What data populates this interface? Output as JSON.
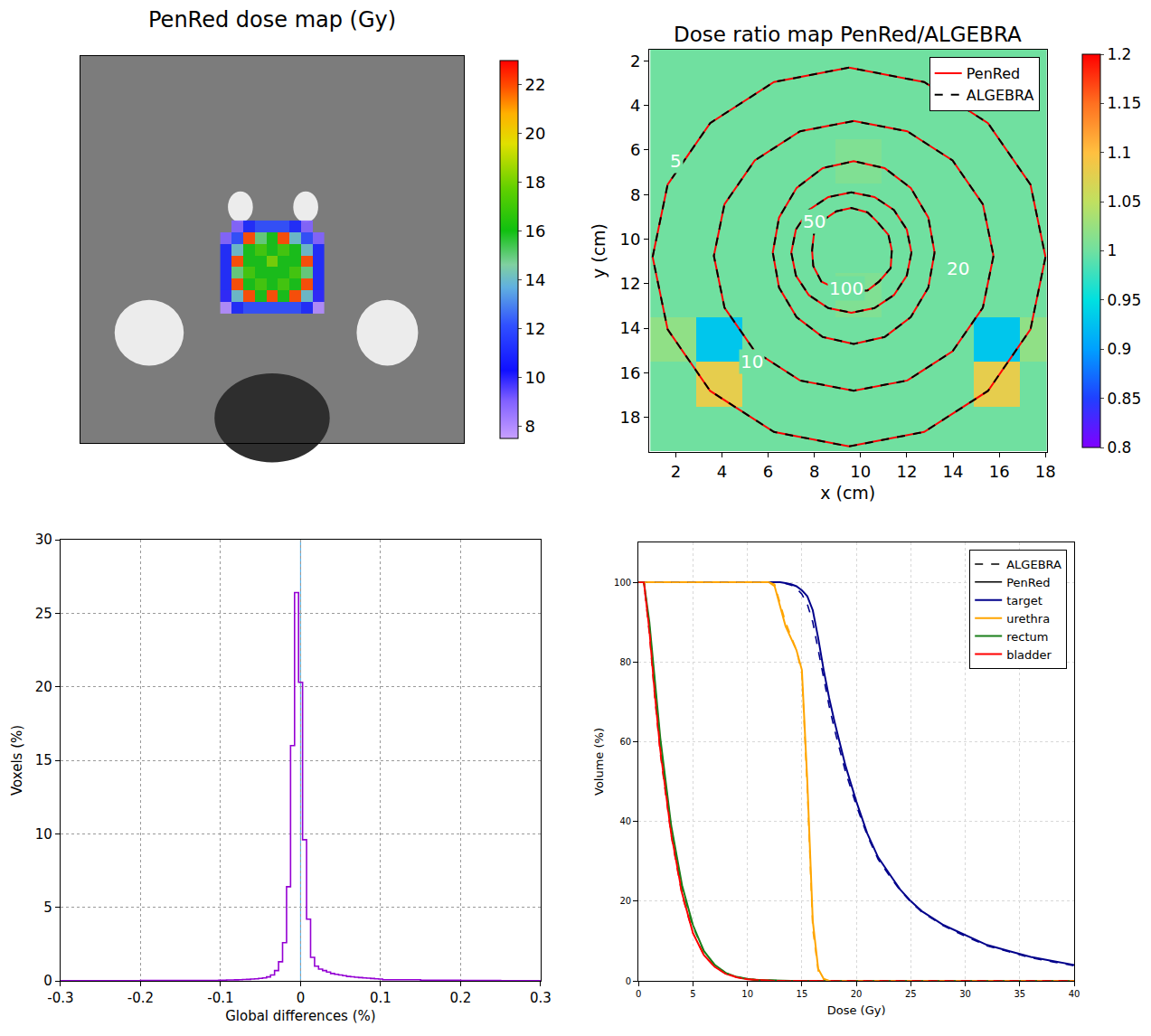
{
  "chart_data": [
    {
      "type": "heatmap",
      "title": "PenRed dose map (Gy)",
      "x": [
        38,
        41,
        44,
        47,
        50,
        53,
        56,
        59,
        62
      ],
      "y": [
        44,
        47,
        50,
        53,
        56,
        59,
        62,
        65
      ],
      "z": [
        [
          null,
          9,
          11,
          12,
          12,
          12,
          11,
          9,
          null
        ],
        [
          9,
          12,
          22,
          15,
          16,
          22,
          14,
          12,
          9
        ],
        [
          11,
          14,
          16,
          17,
          16,
          17,
          16,
          14,
          11
        ],
        [
          11,
          22,
          16,
          16,
          18,
          16,
          16,
          22,
          11
        ],
        [
          11,
          15,
          17,
          16,
          16,
          16,
          17,
          15,
          11
        ],
        [
          11,
          22,
          16,
          17,
          16,
          17,
          16,
          22,
          11
        ],
        [
          10,
          14,
          22,
          16,
          22,
          16,
          22,
          14,
          10
        ],
        [
          8,
          11,
          12,
          12,
          12,
          12,
          12,
          11,
          8
        ]
      ],
      "xlim": [
        0,
        100
      ],
      "ylim": [
        100,
        0
      ],
      "tick_labels": false,
      "colorbar_range": [
        7.5,
        23
      ],
      "colorbar_ticks": [
        8,
        10,
        12,
        14,
        16,
        18,
        20,
        22
      ]
    },
    {
      "type": "heatmap",
      "title": "Dose ratio map PenRed/ALGEBRA",
      "xlabel": "x (cm)",
      "ylabel": "y (cm)",
      "x": [
        1.9,
        3.9,
        5.9,
        7.9,
        9.9,
        11.9,
        13.9,
        15.9,
        17.9
      ],
      "y": [
        2.5,
        4.5,
        6.5,
        8.5,
        10.5,
        12.5,
        14.5,
        16.5,
        18.5
      ],
      "z": [
        [
          1,
          1,
          1,
          1,
          1,
          1,
          1,
          1,
          1
        ],
        [
          1,
          1,
          1,
          1,
          1,
          1,
          1,
          1,
          1
        ],
        [
          1,
          1,
          1,
          1,
          1.01,
          1,
          1,
          1,
          1
        ],
        [
          1,
          1,
          1,
          1,
          1,
          1,
          1,
          1,
          1
        ],
        [
          1,
          1,
          1,
          1,
          1,
          1,
          1,
          1,
          1
        ],
        [
          1,
          1,
          1,
          1,
          1.01,
          1,
          1,
          1,
          1
        ],
        [
          1.02,
          0.93,
          1,
          1,
          1,
          1,
          1,
          0.93,
          1.02
        ],
        [
          1,
          1.08,
          1,
          1,
          1,
          1,
          1,
          1.08,
          1
        ],
        [
          1,
          1,
          1,
          1,
          1,
          1,
          1,
          1,
          1
        ]
      ],
      "xlim": [
        0.85,
        18.05
      ],
      "xticks": [
        2,
        4,
        6,
        8,
        10,
        12,
        14,
        16,
        18
      ],
      "ylim": [
        19.55,
        1.5
      ],
      "yticks": [
        2,
        4,
        6,
        8,
        10,
        12,
        14,
        16,
        18
      ],
      "colorbar_range": [
        0.8,
        1.2
      ],
      "colorbar_ticks": [
        0.8,
        0.85,
        0.9,
        0.95,
        1,
        1.05,
        1.1,
        1.15,
        1.2
      ],
      "legend": "top right",
      "series": [
        {
          "name": "PenRed",
          "color": "#ff0000",
          "line_style": "solid"
        },
        {
          "name": "ALGEBRA",
          "color": "#000000",
          "line_style": "dash"
        }
      ],
      "contours": [
        {
          "level": 5,
          "label_at": [
            2.0,
            6.5
          ],
          "x": [
            18.0,
            17.35,
            15.51,
            12.75,
            9.5,
            6.25,
            3.49,
            1.65,
            1.0,
            1.65,
            3.49,
            6.25,
            9.5,
            12.75,
            15.51,
            17.35
          ],
          "y": [
            10.8,
            14.05,
            16.81,
            18.65,
            19.3,
            18.65,
            16.81,
            14.05,
            10.8,
            7.55,
            4.79,
            2.95,
            2.3,
            2.95,
            4.79,
            7.55
          ]
        },
        {
          "level": 10,
          "label_at": [
            5.3,
            15.5
          ],
          "x": [
            15.75,
            15.29,
            13.98,
            12.02,
            9.7,
            7.38,
            5.42,
            4.11,
            3.65,
            4.11,
            5.42,
            7.38,
            9.7,
            12.02,
            13.98,
            15.29
          ],
          "y": [
            10.75,
            13.07,
            15.03,
            16.34,
            16.8,
            16.34,
            15.03,
            13.07,
            10.75,
            8.43,
            6.47,
            5.16,
            4.7,
            5.16,
            6.47,
            8.43
          ]
        },
        {
          "level": 20,
          "label_at": [
            14.2,
            11.3
          ],
          "x": [
            13.2,
            12.93,
            12.17,
            11.04,
            9.7,
            8.36,
            7.23,
            6.47,
            6.2,
            6.47,
            7.23,
            8.36,
            9.7,
            11.04,
            12.17,
            12.93
          ],
          "y": [
            10.6,
            12.17,
            13.5,
            14.39,
            14.7,
            14.39,
            13.5,
            12.17,
            10.6,
            9.03,
            7.7,
            6.81,
            6.5,
            6.81,
            7.7,
            9.03
          ]
        },
        {
          "level": 50,
          "label_at": [
            8.0,
            9.2
          ],
          "x": [
            12.2,
            12.0,
            11.44,
            10.6,
            9.6,
            8.6,
            7.76,
            7.2,
            7.0,
            7.2,
            7.76,
            8.6,
            9.6,
            10.6,
            11.44,
            12.0
          ],
          "y": [
            10.6,
            11.63,
            12.51,
            13.09,
            13.3,
            13.09,
            12.51,
            11.63,
            10.6,
            9.57,
            8.69,
            8.11,
            7.9,
            8.11,
            8.69,
            9.57
          ]
        },
        {
          "level": 100,
          "label_at": [
            9.4,
            12.2
          ],
          "x": [
            11.35,
            11.3,
            10.8,
            10.3,
            9.6,
            8.9,
            8.3,
            7.95,
            7.9,
            8.0,
            8.45,
            8.95,
            9.6,
            10.3,
            10.7,
            11.2
          ],
          "y": [
            10.5,
            11.3,
            11.9,
            12.3,
            12.35,
            12.2,
            11.9,
            11.2,
            10.5,
            9.6,
            9.1,
            8.75,
            8.6,
            8.8,
            9.2,
            9.8
          ]
        }
      ]
    },
    {
      "type": "histogram",
      "xlabel": "Global differences (%)",
      "ylabel": "Voxels (%)",
      "color": "#9400d3",
      "bins": [
        -0.3,
        -0.25,
        -0.2,
        -0.15,
        -0.1025,
        -0.0975,
        -0.0925,
        -0.0875,
        -0.0825,
        -0.0775,
        -0.0725,
        -0.0675,
        -0.0625,
        -0.0575,
        -0.0525,
        -0.0475,
        -0.0425,
        -0.0375,
        -0.0325,
        -0.0275,
        -0.0225,
        -0.0175,
        -0.0125,
        -0.0075,
        -0.0025,
        0.0025,
        0.0075,
        0.0125,
        0.0175,
        0.0225,
        0.0275,
        0.0325,
        0.0375,
        0.0425,
        0.0475,
        0.0525,
        0.0575,
        0.0625,
        0.0675,
        0.0725,
        0.0775,
        0.0825,
        0.0875,
        0.0925,
        0.0975,
        0.1025,
        0.15,
        0.2,
        0.25,
        0.3
      ],
      "counts": [
        0.01,
        0.01,
        0.02,
        0.03,
        0.05,
        0.05,
        0.06,
        0.06,
        0.07,
        0.08,
        0.09,
        0.1,
        0.12,
        0.14,
        0.17,
        0.2,
        0.27,
        0.4,
        0.7,
        1.3,
        2.6,
        6.4,
        16,
        26.4,
        20.3,
        9.6,
        4.2,
        1.6,
        1.0,
        0.8,
        0.7,
        0.6,
        0.5,
        0.45,
        0.4,
        0.35,
        0.3,
        0.28,
        0.25,
        0.22,
        0.2,
        0.18,
        0.16,
        0.14,
        0.12,
        0.08,
        0.04,
        0.02,
        0.01
      ],
      "reference_line": {
        "x": 0,
        "color": "#5fb4e8"
      },
      "xlim": [
        -0.3,
        0.3
      ],
      "xticks": [
        -0.3,
        -0.2,
        -0.1,
        0,
        0.1,
        0.2,
        0.3
      ],
      "ylim": [
        0,
        30
      ],
      "yticks": [
        0,
        5,
        10,
        15,
        20,
        25,
        30
      ],
      "grid": true
    },
    {
      "type": "line",
      "xlabel": "Dose (Gy)",
      "ylabel": "Volume (%)",
      "x": [
        0,
        0.5,
        1,
        1.5,
        2,
        3,
        4,
        5,
        6,
        7,
        8,
        9,
        10,
        11,
        12,
        12.5,
        13,
        13.5,
        14,
        14.5,
        15,
        15.5,
        16,
        16.5,
        17,
        17.5,
        18,
        19,
        20,
        21,
        22,
        23,
        24,
        25,
        26,
        28,
        30,
        32,
        34,
        36,
        38,
        40
      ],
      "xlim": [
        0,
        40
      ],
      "xticks": [
        0,
        5,
        10,
        15,
        20,
        25,
        30,
        35,
        40
      ],
      "ylim": [
        0,
        110
      ],
      "yticks": [
        0,
        20,
        40,
        60,
        80,
        100
      ],
      "grid": true,
      "legend": "top right",
      "line_styles": [
        {
          "name": "ALGEBRA",
          "color": "#000000",
          "line_style": "dash"
        },
        {
          "name": "PenRed",
          "color": "#000000",
          "line_style": "solid"
        }
      ],
      "series": [
        {
          "name": "target",
          "color": "#00008b",
          "values": [
            100,
            100,
            100,
            100,
            100,
            100,
            100,
            100,
            100,
            100,
            100,
            100,
            100,
            100,
            100,
            100,
            100,
            99.8,
            99.5,
            99,
            98,
            96.5,
            93,
            86,
            78,
            71,
            65,
            54,
            45,
            37,
            31,
            27,
            23,
            20,
            17.5,
            14,
            11.5,
            9,
            7.5,
            6,
            5,
            4
          ],
          "algebra_values": [
            100,
            100,
            100,
            100,
            100,
            100,
            100,
            100,
            100,
            100,
            100,
            100,
            100,
            100,
            100,
            100,
            100,
            99.7,
            99.3,
            98.5,
            97,
            94.5,
            90,
            83,
            76,
            69,
            63,
            52.5,
            44,
            36.5,
            30.5,
            26.5,
            22.8,
            19.8,
            17.3,
            13.8,
            11.2,
            8.8,
            7.3,
            5.8,
            4.8,
            3.8
          ]
        },
        {
          "name": "urethra",
          "color": "#ffa500",
          "values": [
            100,
            100,
            100,
            100,
            100,
            100,
            100,
            100,
            100,
            100,
            100,
            100,
            100,
            100,
            100,
            99,
            94,
            89,
            86,
            83,
            78,
            50,
            15,
            3,
            0.5,
            0,
            0,
            0,
            0,
            0,
            0,
            0,
            0,
            0,
            0,
            0,
            0,
            0,
            0,
            0,
            0,
            0
          ],
          "algebra_values": [
            100,
            100,
            100,
            100,
            100,
            100,
            100,
            100,
            100,
            100,
            100,
            100,
            100,
            100,
            100,
            99.5,
            95,
            90,
            86.5,
            83,
            77,
            48,
            13,
            2.5,
            0.4,
            0,
            0,
            0,
            0,
            0,
            0,
            0,
            0,
            0,
            0,
            0,
            0,
            0,
            0,
            0,
            0,
            0
          ]
        },
        {
          "name": "rectum",
          "color": "#1a7f1a",
          "values": [
            100,
            100,
            90,
            75,
            61,
            39,
            24,
            14,
            7.5,
            4,
            2,
            1,
            0.5,
            0.2,
            0.1,
            0,
            0,
            0,
            0,
            0,
            0,
            0,
            0,
            0,
            0,
            0,
            0,
            0,
            0,
            0,
            0,
            0,
            0,
            0,
            0,
            0,
            0,
            0,
            0,
            0,
            0,
            0
          ],
          "algebra_values": [
            100,
            100,
            89,
            74,
            60,
            38.5,
            23.5,
            13.5,
            7.5,
            4,
            2,
            1,
            0.5,
            0.2,
            0.1,
            0,
            0,
            0,
            0,
            0,
            0,
            0,
            0,
            0,
            0,
            0,
            0,
            0,
            0,
            0,
            0,
            0,
            0,
            0,
            0,
            0,
            0,
            0,
            0,
            0,
            0,
            0
          ]
        },
        {
          "name": "bladder",
          "color": "#ff0000",
          "values": [
            100,
            100,
            88,
            72,
            58,
            37,
            22,
            12,
            6.5,
            3.5,
            1.8,
            0.9,
            0.4,
            0.2,
            0.1,
            0,
            0,
            0,
            0,
            0,
            0,
            0,
            0,
            0,
            0,
            0,
            0,
            0,
            0,
            0,
            0,
            0,
            0,
            0,
            0,
            0,
            0,
            0,
            0,
            0,
            0,
            0
          ],
          "algebra_values": [
            100,
            100,
            87,
            71,
            57,
            36.5,
            21.5,
            12,
            6.5,
            3.5,
            1.8,
            0.9,
            0.4,
            0.2,
            0.1,
            0,
            0,
            0,
            0,
            0,
            0,
            0,
            0,
            0,
            0,
            0,
            0,
            0,
            0,
            0,
            0,
            0,
            0,
            0,
            0,
            0,
            0,
            0,
            0,
            0,
            0,
            0
          ]
        }
      ]
    }
  ]
}
